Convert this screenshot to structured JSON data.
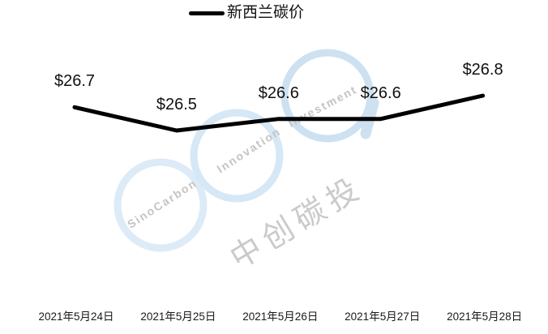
{
  "legend": {
    "label": "新西兰碳价",
    "marker_color": "#000000"
  },
  "chart_data": {
    "type": "line",
    "title": "",
    "categories": [
      "2021年5月24日",
      "2021年5月25日",
      "2021年5月26日",
      "2021年5月27日",
      "2021年5月28日"
    ],
    "series": [
      {
        "name": "新西兰碳价",
        "values": [
          26.7,
          26.5,
          26.6,
          26.6,
          26.8
        ]
      }
    ],
    "data_labels": [
      "$26.7",
      "$26.5",
      "$26.6",
      "$26.6",
      "$26.8"
    ],
    "xlabel": "",
    "ylabel": "",
    "ylim": [
      26.4,
      26.95
    ],
    "grid": false,
    "axes_visible": false,
    "legend_position": "top-center",
    "line_color": "#000000",
    "label_color": "#111111"
  },
  "watermark": {
    "words": [
      "SinoCarbon",
      "Innovation",
      "Investment"
    ],
    "cjk_text": "中创碳投",
    "ring_colors": [
      "#dcebf7",
      "#d6e7f5",
      "#cde1f1"
    ],
    "text_color": "#c4c4c4"
  }
}
